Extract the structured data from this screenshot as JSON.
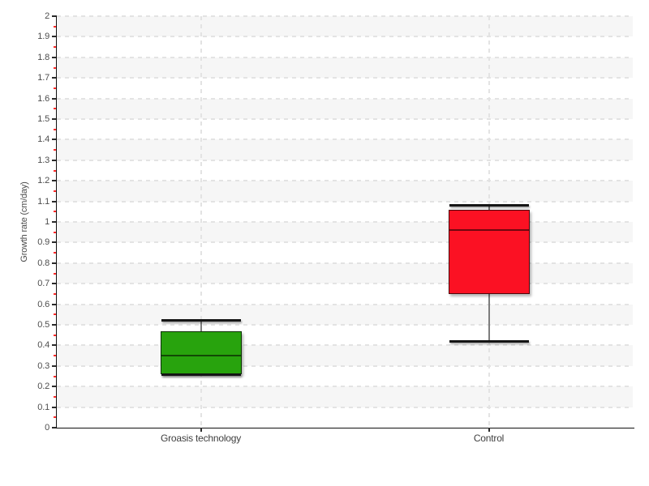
{
  "chart_data": {
    "type": "boxplot",
    "title": "",
    "xlabel": "",
    "ylabel": "Growth rate (cm/day)",
    "ylim": [
      0,
      2
    ],
    "ytick_step": 0.1,
    "yminor_step": 0.05,
    "ytick_labels": [
      "0",
      "0.1",
      "0.2",
      "0.3",
      "0.4",
      "0.5",
      "0.6",
      "0.7",
      "0.8",
      "0.9",
      "1",
      "1.1",
      "1.2",
      "1.3",
      "1.4",
      "1.5",
      "1.6",
      "1.7",
      "1.8",
      "1.9",
      "2"
    ],
    "grid": true,
    "legend": false,
    "background_bands": "alternating horizontal stripes every 0.1",
    "categories": [
      "Groasis technology",
      "Control"
    ],
    "series": [
      {
        "name": "Groasis technology",
        "color": "#28a30d",
        "min": 0.26,
        "q1": 0.26,
        "median": 0.35,
        "q3": 0.47,
        "max": 0.52
      },
      {
        "name": "Control",
        "color": "#fb1123",
        "min": 0.42,
        "q1": 0.65,
        "median": 0.96,
        "q3": 1.06,
        "max": 1.08
      }
    ],
    "colors": {
      "band": "#f6f6f6",
      "grid": "#e3e3e3",
      "axis": "#111111",
      "major_tick": "#2b2b2b",
      "minor_tick": "#ff2a2a",
      "tick_label": "#4d4d4d",
      "whisker": "#7d7d7d",
      "cap": "#151515"
    }
  }
}
